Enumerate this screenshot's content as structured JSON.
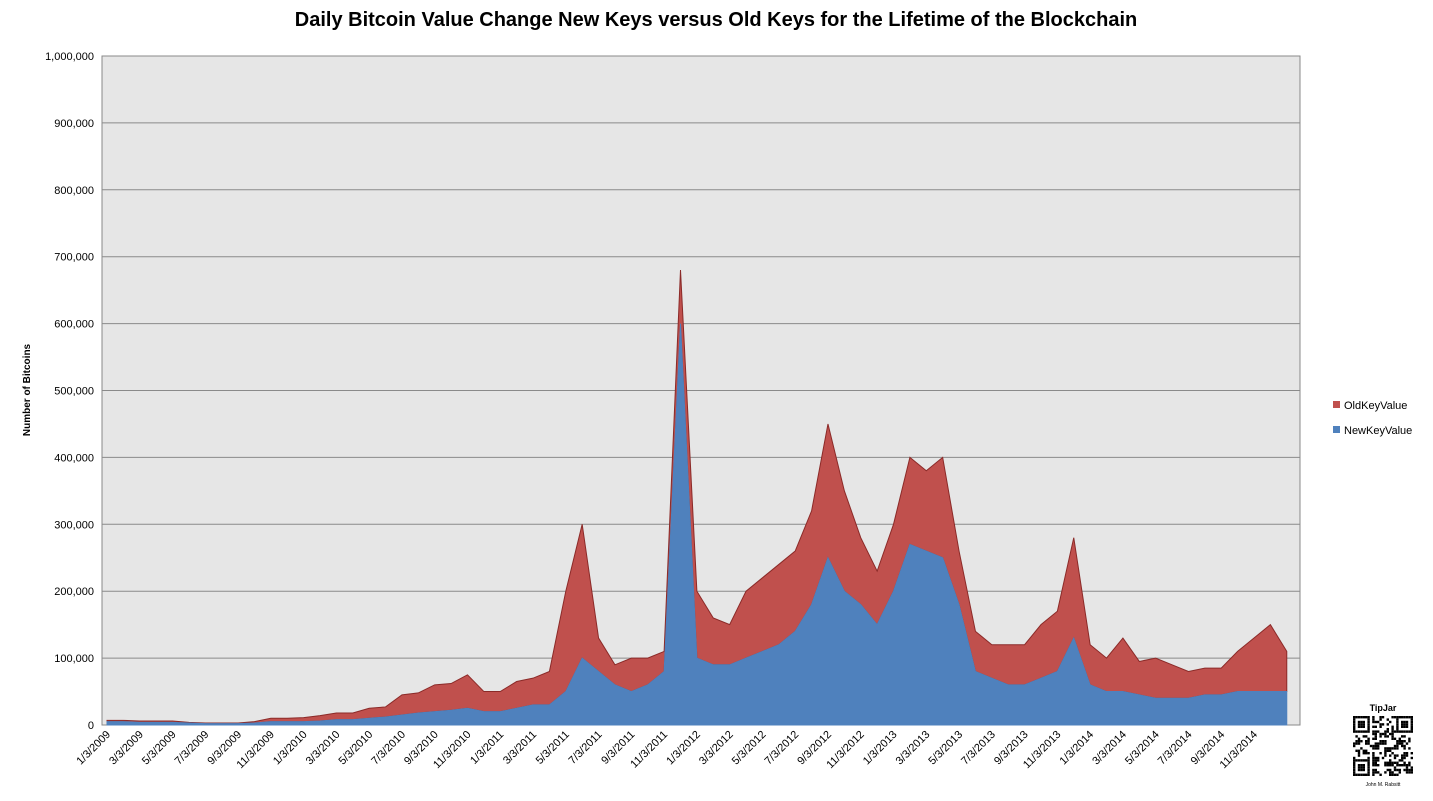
{
  "chart_data": {
    "type": "stacked-area",
    "title": "Daily Bitcoin Value Change New Keys versus Old Keys for the Lifetime of the Blockchain",
    "y_label": "Number of Bitcoins",
    "categories": [
      "1/3/2009",
      null,
      "3/3/2009",
      null,
      "5/3/2009",
      null,
      "7/3/2009",
      null,
      "9/3/2009",
      null,
      "11/3/2009",
      null,
      "1/3/2010",
      null,
      "3/3/2010",
      null,
      "5/3/2010",
      null,
      "7/3/2010",
      null,
      "9/3/2010",
      null,
      "11/3/2010",
      null,
      "1/3/2011",
      null,
      "3/3/2011",
      null,
      "5/3/2011",
      null,
      "7/3/2011",
      null,
      "9/3/2011",
      null,
      "11/3/2011",
      null,
      "1/3/2012",
      null,
      "3/3/2012",
      null,
      "5/3/2012",
      null,
      "7/3/2012",
      null,
      "9/3/2012",
      null,
      "11/3/2012",
      null,
      "1/3/2013",
      null,
      "3/3/2013",
      null,
      "5/3/2013",
      null,
      "7/3/2013",
      null,
      "9/3/2013",
      null,
      "11/3/2013",
      null,
      "1/3/2014",
      null,
      "3/3/2014",
      null,
      "5/3/2014",
      null,
      "7/3/2014",
      null,
      "9/3/2014",
      null,
      "11/3/2014",
      null,
      null
    ],
    "series": [
      {
        "name": "NewKeyValue",
        "color": "#4f81bd",
        "values": [
          5000,
          5000,
          4000,
          4000,
          4000,
          3000,
          2000,
          2000,
          2000,
          3000,
          5000,
          5000,
          5000,
          6000,
          8000,
          8000,
          10000,
          12000,
          15000,
          18000,
          20000,
          22000,
          25000,
          20000,
          20000,
          25000,
          30000,
          30000,
          50000,
          100000,
          80000,
          60000,
          50000,
          60000,
          80000,
          600000,
          100000,
          90000,
          90000,
          100000,
          110000,
          120000,
          140000,
          180000,
          250000,
          200000,
          180000,
          150000,
          200000,
          270000,
          260000,
          250000,
          180000,
          80000,
          70000,
          60000,
          60000,
          70000,
          80000,
          130000,
          60000,
          50000,
          50000,
          45000,
          40000,
          40000,
          40000,
          45000,
          45000,
          50000,
          50000,
          50000,
          50000
        ]
      },
      {
        "name": "OldKeyValue",
        "color": "#c0504d",
        "values": [
          2000,
          2000,
          2000,
          2000,
          2000,
          1000,
          1000,
          1000,
          1000,
          2000,
          5000,
          5000,
          6000,
          8000,
          10000,
          10000,
          15000,
          15000,
          30000,
          30000,
          40000,
          40000,
          50000,
          30000,
          30000,
          40000,
          40000,
          50000,
          150000,
          200000,
          50000,
          30000,
          50000,
          40000,
          30000,
          80000,
          100000,
          70000,
          60000,
          100000,
          110000,
          120000,
          120000,
          140000,
          200000,
          150000,
          100000,
          80000,
          100000,
          130000,
          120000,
          150000,
          80000,
          60000,
          50000,
          60000,
          60000,
          80000,
          90000,
          150000,
          60000,
          50000,
          80000,
          50000,
          60000,
          50000,
          40000,
          40000,
          40000,
          60000,
          80000,
          100000,
          60000
        ]
      }
    ],
    "ylim": [
      0,
      1000000
    ],
    "yticks": [
      0,
      {
        "value": 100000,
        "label": "100,000"
      },
      {
        "value": 200000,
        "label": "200,000"
      },
      {
        "value": 300000,
        "label": "300,000"
      },
      {
        "value": 400000,
        "label": "400,000"
      },
      {
        "value": 500000,
        "label": "500,000"
      },
      {
        "value": 600000,
        "label": "600,000"
      },
      {
        "value": 700000,
        "label": "700,000"
      },
      {
        "value": 800000,
        "label": "800,000"
      },
      {
        "value": 900000,
        "label": "900,000"
      },
      {
        "value": 1000000,
        "label": "1,000,000"
      }
    ],
    "grid": true,
    "legend": "right",
    "tipjar": {
      "title": "TipJar",
      "name": "John M. Rabsitt"
    }
  }
}
